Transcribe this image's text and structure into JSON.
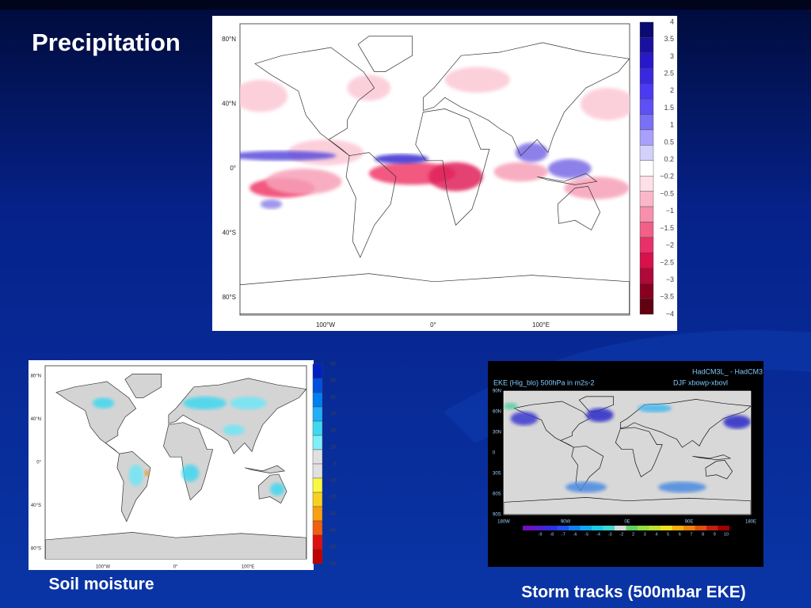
{
  "title": "Precipitation",
  "precipitation_map": {
    "lat_labels": [
      "80°N",
      "40°N",
      "0°",
      "40°S",
      "80°S"
    ],
    "lon_labels": [
      "100°W",
      "0°",
      "100°E"
    ],
    "colorbar_labels": [
      "4",
      "3.5",
      "3",
      "2.5",
      "2",
      "1.5",
      "1",
      "0.5",
      "0.2",
      "−0.2",
      "−0.5",
      "−1",
      "−1.5",
      "−2",
      "−2.5",
      "−3",
      "−3.5",
      "−4"
    ]
  },
  "soil_moisture_map": {
    "caption": "Soil moisture",
    "lat_labels": [
      "80°N",
      "40°N",
      "0°",
      "40°S",
      "80°S"
    ],
    "lon_labels": [
      "100°W",
      "0°",
      "100°E"
    ],
    "colorbar_labels": [
      "60",
      "50",
      "40",
      "30",
      "20",
      "10",
      "0",
      "−10",
      "−20",
      "−30",
      "−40",
      "−50",
      "−60"
    ]
  },
  "storm_track_map": {
    "caption": "Storm tracks (500mbar EKE)",
    "header_right": "HadCM3L_ - HadCM3",
    "header_left": "EKE (Hig_blo) 500hPa  in m2s-2",
    "header_season": "DJF     xbowp-xbovl",
    "lat_labels": [
      "90N",
      "60N",
      "30N",
      "0",
      "30S",
      "60S",
      "90S"
    ],
    "lon_labels": [
      "180W",
      "90W",
      "0E",
      "90E",
      "180E"
    ],
    "colorbar_labels": [
      "-9",
      "-8",
      "-7",
      "-6",
      "-5",
      "-4",
      "-3",
      "-2",
      "2",
      "3",
      "4",
      "5",
      "6",
      "7",
      "8",
      "9",
      "10"
    ]
  }
}
